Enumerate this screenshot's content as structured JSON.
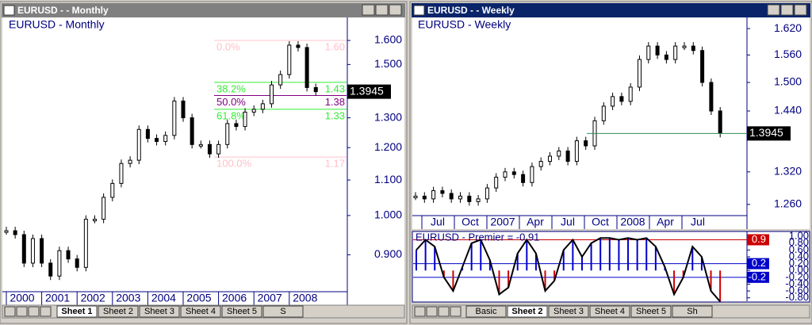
{
  "windows": [
    {
      "title": "EURUSD -  - Monthly",
      "chart_label": "EURUSD - Monthly",
      "ylim": [
        0.815,
        1.702
      ],
      "log": true,
      "yticks": [
        {
          "value": 1.6,
          "label": "1.600"
        },
        {
          "value": 1.5,
          "label": "1.500"
        },
        {
          "value": 1.3,
          "label": "1.300"
        },
        {
          "value": 1.2,
          "label": "1.200"
        },
        {
          "value": 1.1,
          "label": "1.100"
        },
        {
          "value": 1.0,
          "label": "1.000"
        },
        {
          "value": 0.9,
          "label": "0.900"
        }
      ],
      "categories": [
        "2000",
        "2001",
        "2002",
        "2003",
        "2004",
        "2005",
        "2006",
        "2007",
        "2008"
      ],
      "closes": [
        0.96,
        0.95,
        0.88,
        0.94,
        0.88,
        0.85,
        0.91,
        0.89,
        0.87,
        0.99,
        0.99,
        1.05,
        1.09,
        1.15,
        1.16,
        1.26,
        1.23,
        1.22,
        1.24,
        1.36,
        1.3,
        1.21,
        1.21,
        1.18,
        1.21,
        1.28,
        1.27,
        1.32,
        1.33,
        1.35,
        1.42,
        1.46,
        1.58,
        1.57,
        1.41,
        1.3945
      ],
      "last_price": 1.3945,
      "fib_levels": [
        {
          "pct": "0.0%",
          "value": 1.6,
          "value_label": "1.60",
          "color": "#ffc0cb"
        },
        {
          "pct": "38.2%",
          "value": 1.43,
          "color": "#33ee33"
        },
        {
          "pct": "50.0%",
          "value": 1.38,
          "color": "#800080"
        },
        {
          "pct": "61.8%",
          "value": 1.33,
          "color": "#33ee33"
        },
        {
          "pct": "100.0%",
          "value": 1.17,
          "color": "#ffc0cb"
        }
      ],
      "tabs": [
        "Sheet 1",
        "Sheet 2",
        "Sheet 3",
        "Sheet 4",
        "Sheet 5",
        "S"
      ],
      "active_tab": 0
    },
    {
      "title": "EURUSD -  - Weekly",
      "chart_label": "EURUSD - Weekly",
      "ylim": [
        1.24,
        1.646
      ],
      "log": true,
      "yticks": [
        {
          "value": 1.62,
          "label": "1.620"
        },
        {
          "value": 1.56,
          "label": "1.560"
        },
        {
          "value": 1.5,
          "label": "1.500"
        },
        {
          "value": 1.44,
          "label": "1.440"
        },
        {
          "value": 1.32,
          "label": "1.320"
        },
        {
          "value": 1.26,
          "label": "1.260"
        }
      ],
      "categories": [
        "Jul",
        "Oct",
        "2007",
        "Apr",
        "Jul",
        "Oct",
        "2008",
        "Apr",
        "Jul"
      ],
      "closes": [
        1.275,
        1.27,
        1.285,
        1.28,
        1.27,
        1.275,
        1.265,
        1.27,
        1.29,
        1.31,
        1.32,
        1.315,
        1.3,
        1.33,
        1.34,
        1.35,
        1.36,
        1.34,
        1.38,
        1.37,
        1.42,
        1.45,
        1.47,
        1.46,
        1.49,
        1.55,
        1.58,
        1.56,
        1.55,
        1.58,
        1.58,
        1.57,
        1.5,
        1.44,
        1.3945
      ],
      "last_price": 1.3945,
      "indicator": {
        "label": "EURUSD - Premier = -0.91",
        "ylim": [
          -0.9,
          1.05
        ],
        "yticks": [
          {
            "value": 1.0,
            "label": "1.00"
          },
          {
            "value": 0.8,
            "label": "0.80"
          },
          {
            "value": 0.6,
            "label": "0.60"
          },
          {
            "value": 0.4,
            "label": "0.40"
          },
          {
            "value": 0.2,
            "label": "0.20"
          },
          {
            "value": 0.0,
            "label": "0.00"
          },
          {
            "value": -0.2,
            "label": "-0.20"
          },
          {
            "value": -0.4,
            "label": "-0.40"
          },
          {
            "value": -0.6,
            "label": "-0.60"
          },
          {
            "value": -0.8,
            "label": "-0.80"
          }
        ],
        "values": [
          0.6,
          0.9,
          0.7,
          -0.2,
          -0.6,
          0.1,
          0.8,
          0.9,
          0.3,
          -0.7,
          -0.5,
          0.5,
          0.9,
          0.5,
          -0.6,
          -0.3,
          0.6,
          0.9,
          0.4,
          0.8,
          0.95,
          0.95,
          0.9,
          0.95,
          0.9,
          0.95,
          0.7,
          0.1,
          -0.7,
          -0.2,
          0.7,
          0.4,
          -0.6,
          -0.91
        ],
        "levels": [
          {
            "value": 0.9,
            "color": "#cc0000"
          },
          {
            "value": 0.2,
            "color": "#0000cc"
          },
          {
            "value": -0.2,
            "color": "#0000cc"
          }
        ]
      },
      "tabs": [
        "Basic",
        "Sheet 2",
        "Sheet 3",
        "Sheet 4",
        "Sheet 5",
        "Sh"
      ],
      "active_tab": 1
    }
  ]
}
